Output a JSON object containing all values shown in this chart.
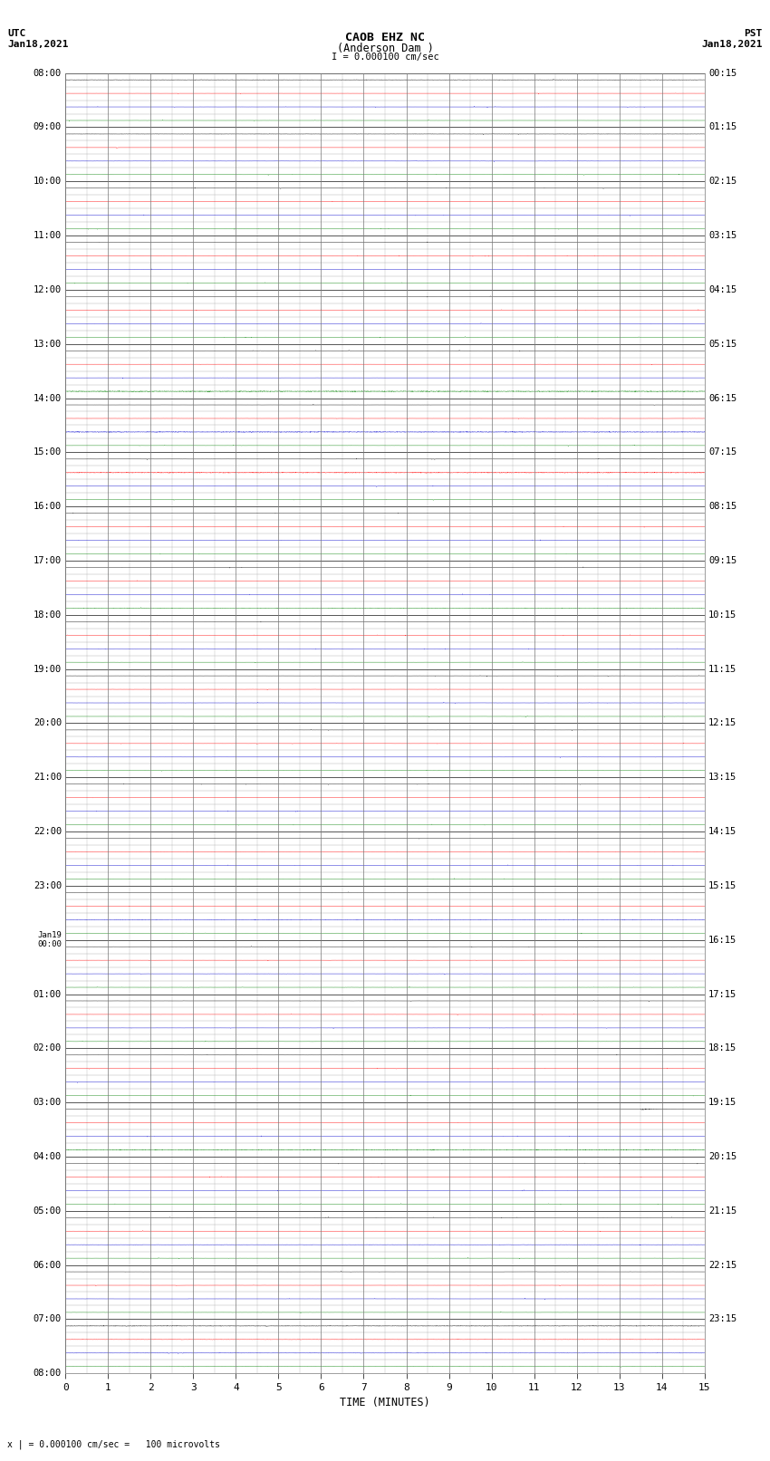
{
  "title_line1": "CAOB EHZ NC",
  "title_line2": "(Anderson Dam )",
  "title_line3": "I = 0.000100 cm/sec",
  "left_header_line1": "UTC",
  "left_header_line2": "Jan18,2021",
  "right_header_line1": "PST",
  "right_header_line2": "Jan18,2021",
  "xlabel": "TIME (MINUTES)",
  "footer": "x | = 0.000100 cm/sec =   100 microvolts",
  "xlim": [
    0,
    15
  ],
  "bg_color": "#ffffff",
  "grid_color": "#888888",
  "minor_grid_color": "#cccccc"
}
